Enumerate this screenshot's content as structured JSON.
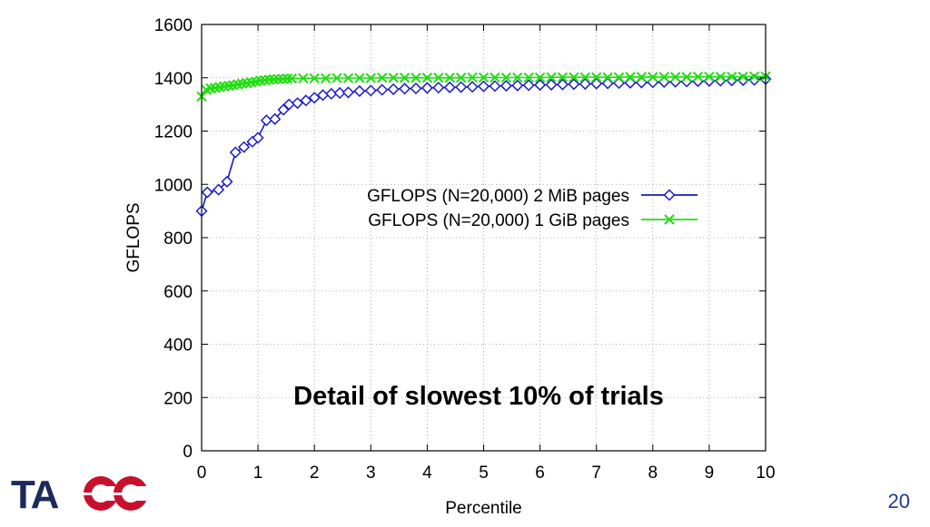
{
  "slide": {
    "page_number": "20"
  },
  "logo": {
    "text": "TACC"
  },
  "chart_data": {
    "type": "line",
    "title": "",
    "annotation": "Detail of slowest 10% of trials",
    "xlabel": "Percentile",
    "ylabel": "GFLOPS",
    "xlim": [
      0,
      10
    ],
    "ylim": [
      0,
      1600
    ],
    "xticks": [
      "0",
      "1",
      "2",
      "3",
      "4",
      "5",
      "6",
      "7",
      "8",
      "9",
      "10"
    ],
    "yticks": [
      "0",
      "200",
      "400",
      "600",
      "800",
      "1000",
      "1200",
      "1400",
      "1600"
    ],
    "grid": true,
    "legend_position": "center-right",
    "series": [
      {
        "name": "GFLOPS (N=20,000) 2 MiB pages",
        "color": "#1a1acc",
        "marker": "diamond",
        "points": [
          [
            0,
            900
          ],
          [
            0.1,
            970
          ],
          [
            0.3,
            980
          ],
          [
            0.45,
            1010
          ],
          [
            0.6,
            1120
          ],
          [
            0.75,
            1140
          ],
          [
            0.9,
            1160
          ],
          [
            1.0,
            1175
          ],
          [
            1.15,
            1240
          ],
          [
            1.3,
            1245
          ],
          [
            1.45,
            1280
          ],
          [
            1.55,
            1300
          ],
          [
            1.7,
            1305
          ],
          [
            1.85,
            1315
          ],
          [
            2.0,
            1325
          ],
          [
            2.15,
            1335
          ],
          [
            2.3,
            1340
          ],
          [
            2.45,
            1343
          ],
          [
            2.6,
            1345
          ],
          [
            2.8,
            1350
          ],
          [
            3.0,
            1352
          ],
          [
            3.2,
            1355
          ],
          [
            3.4,
            1357
          ],
          [
            3.6,
            1359
          ],
          [
            3.8,
            1360
          ],
          [
            4.0,
            1362
          ],
          [
            4.2,
            1363
          ],
          [
            4.4,
            1364
          ],
          [
            4.6,
            1365
          ],
          [
            4.8,
            1366
          ],
          [
            5.0,
            1368
          ],
          [
            5.2,
            1369
          ],
          [
            5.4,
            1370
          ],
          [
            5.6,
            1371
          ],
          [
            5.8,
            1372
          ],
          [
            6.0,
            1373
          ],
          [
            6.2,
            1374
          ],
          [
            6.4,
            1375
          ],
          [
            6.6,
            1376
          ],
          [
            6.8,
            1377
          ],
          [
            7.0,
            1378
          ],
          [
            7.2,
            1379
          ],
          [
            7.4,
            1380
          ],
          [
            7.6,
            1381
          ],
          [
            7.8,
            1382
          ],
          [
            8.0,
            1383
          ],
          [
            8.2,
            1384
          ],
          [
            8.4,
            1385
          ],
          [
            8.6,
            1386
          ],
          [
            8.8,
            1387
          ],
          [
            9.0,
            1388
          ],
          [
            9.2,
            1389
          ],
          [
            9.4,
            1390
          ],
          [
            9.6,
            1391
          ],
          [
            9.8,
            1392
          ],
          [
            10,
            1395
          ]
        ]
      },
      {
        "name": "GFLOPS (N=20,000) 1 GiB pages",
        "color": "#22dd11",
        "marker": "x",
        "points": [
          [
            0,
            1330
          ],
          [
            0.08,
            1355
          ],
          [
            0.16,
            1360
          ],
          [
            0.24,
            1362
          ],
          [
            0.32,
            1365
          ],
          [
            0.4,
            1368
          ],
          [
            0.48,
            1370
          ],
          [
            0.56,
            1372
          ],
          [
            0.64,
            1375
          ],
          [
            0.72,
            1378
          ],
          [
            0.8,
            1380
          ],
          [
            0.88,
            1383
          ],
          [
            0.96,
            1386
          ],
          [
            1.04,
            1389
          ],
          [
            1.12,
            1391
          ],
          [
            1.2,
            1393
          ],
          [
            1.28,
            1394
          ],
          [
            1.36,
            1395
          ],
          [
            1.44,
            1396
          ],
          [
            1.52,
            1397
          ],
          [
            1.6,
            1397
          ],
          [
            1.8,
            1398
          ],
          [
            2.0,
            1398
          ],
          [
            2.2,
            1398
          ],
          [
            2.4,
            1399
          ],
          [
            2.6,
            1399
          ],
          [
            2.8,
            1399
          ],
          [
            3.0,
            1399
          ],
          [
            3.2,
            1400
          ],
          [
            3.4,
            1400
          ],
          [
            3.6,
            1400
          ],
          [
            3.8,
            1400
          ],
          [
            4.0,
            1400
          ],
          [
            4.2,
            1400
          ],
          [
            4.4,
            1400
          ],
          [
            4.6,
            1400
          ],
          [
            4.8,
            1401
          ],
          [
            5.0,
            1401
          ],
          [
            5.2,
            1401
          ],
          [
            5.4,
            1401
          ],
          [
            5.6,
            1401
          ],
          [
            5.8,
            1401
          ],
          [
            6.0,
            1401
          ],
          [
            6.2,
            1402
          ],
          [
            6.4,
            1402
          ],
          [
            6.6,
            1402
          ],
          [
            6.8,
            1402
          ],
          [
            7.0,
            1402
          ],
          [
            7.2,
            1402
          ],
          [
            7.4,
            1402
          ],
          [
            7.6,
            1403
          ],
          [
            7.8,
            1403
          ],
          [
            8.0,
            1403
          ],
          [
            8.2,
            1403
          ],
          [
            8.4,
            1403
          ],
          [
            8.6,
            1403
          ],
          [
            8.8,
            1404
          ],
          [
            9.0,
            1404
          ],
          [
            9.2,
            1404
          ],
          [
            9.4,
            1404
          ],
          [
            9.6,
            1404
          ],
          [
            9.8,
            1405
          ],
          [
            10,
            1405
          ]
        ]
      }
    ]
  }
}
